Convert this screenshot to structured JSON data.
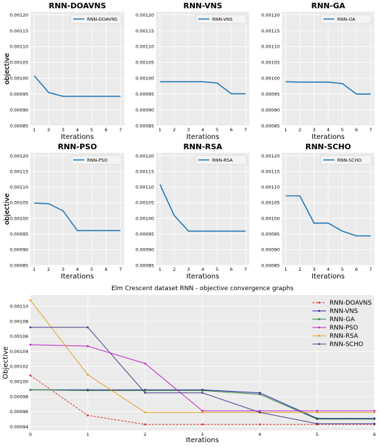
{
  "chart_data": [
    {
      "type": "line",
      "title": "RNN-DOAVNS",
      "xlabel": "Iterations",
      "ylabel": "objective",
      "x": [
        1,
        2,
        3,
        4,
        5,
        6,
        7
      ],
      "ylim": [
        0.00085,
        0.00121
      ],
      "yticks": [
        "0.00085",
        "0.00090",
        "0.00095",
        "0.00100",
        "0.00105",
        "0.00110",
        "0.00115",
        "0.00120"
      ],
      "series": [
        {
          "name": "RNN-DOAVNS",
          "values": [
            0.001008,
            0.000955,
            0.000943,
            0.000943,
            0.000943,
            0.000943,
            0.000943
          ]
        }
      ],
      "legend": "top-right",
      "grid": true
    },
    {
      "type": "line",
      "title": "RNN-VNS",
      "xlabel": "Iterations",
      "ylabel": "objective",
      "x": [
        1,
        2,
        3,
        4,
        5,
        6,
        7
      ],
      "ylim": [
        0.00085,
        0.00121
      ],
      "yticks": [
        "0.00085",
        "0.00090",
        "0.00095",
        "0.00100",
        "0.00105",
        "0.00110",
        "0.00115",
        "0.00120"
      ],
      "series": [
        {
          "name": "RNN-VNS",
          "values": [
            0.000989,
            0.000989,
            0.000989,
            0.000989,
            0.000985,
            0.000951,
            0.000951
          ]
        }
      ],
      "legend": "top-right",
      "grid": true
    },
    {
      "type": "line",
      "title": "RNN-GA",
      "xlabel": "Iterations",
      "ylabel": "objective",
      "x": [
        1,
        2,
        3,
        4,
        5,
        6,
        7
      ],
      "ylim": [
        0.00085,
        0.00121
      ],
      "yticks": [
        "0.00085",
        "0.00090",
        "0.00095",
        "0.00100",
        "0.00105",
        "0.00110",
        "0.00115",
        "0.00120"
      ],
      "series": [
        {
          "name": "RNN-GA",
          "values": [
            0.000989,
            0.000988,
            0.000988,
            0.000988,
            0.000983,
            0.00095,
            0.00095
          ]
        }
      ],
      "legend": "top-right",
      "grid": true
    },
    {
      "type": "line",
      "title": "RNN-PSO",
      "xlabel": "Iterations",
      "ylabel": "objective",
      "x": [
        1,
        2,
        3,
        4,
        5,
        6,
        7
      ],
      "ylim": [
        0.00085,
        0.00121
      ],
      "yticks": [
        "0.00085",
        "0.00090",
        "0.00095",
        "0.00100",
        "0.00105",
        "0.00110",
        "0.00115",
        "0.00120"
      ],
      "series": [
        {
          "name": "RNN-PSO",
          "values": [
            0.001049,
            0.001047,
            0.001024,
            0.000961,
            0.000961,
            0.000961,
            0.000961
          ]
        }
      ],
      "legend": "top-right",
      "grid": true
    },
    {
      "type": "line",
      "title": "RNN-RSA",
      "xlabel": "Iterations",
      "ylabel": "objective",
      "x": [
        1,
        2,
        3,
        4,
        5,
        6,
        7
      ],
      "ylim": [
        0.00085,
        0.00121
      ],
      "yticks": [
        "0.00085",
        "0.00090",
        "0.00095",
        "0.00100",
        "0.00105",
        "0.00110",
        "0.00115",
        "0.00120"
      ],
      "series": [
        {
          "name": "RNN-RSA",
          "values": [
            0.001108,
            0.001009,
            0.000959,
            0.000959,
            0.000959,
            0.000959,
            0.000959
          ]
        }
      ],
      "legend": "top-right",
      "grid": true
    },
    {
      "type": "line",
      "title": "RNN-SCHO",
      "xlabel": "Iterations",
      "ylabel": "objective",
      "x": [
        1,
        2,
        3,
        4,
        5,
        6,
        7
      ],
      "ylim": [
        0.00085,
        0.00121
      ],
      "yticks": [
        "0.00085",
        "0.00090",
        "0.00095",
        "0.00100",
        "0.00105",
        "0.00110",
        "0.00115",
        "0.00120"
      ],
      "series": [
        {
          "name": "RNN-SCHO",
          "values": [
            0.001072,
            0.001072,
            0.000985,
            0.000985,
            0.000959,
            0.000944,
            0.000944
          ]
        }
      ],
      "legend": "top-right",
      "grid": true
    },
    {
      "type": "line",
      "title": "Elm Crescent dataset RNN -  objective convergence graphs",
      "xlabel": "Iterations",
      "ylabel": "Objective",
      "x": [
        0,
        1,
        2,
        3,
        4,
        5,
        6
      ],
      "xticks": [
        "0",
        "1",
        "2",
        "3",
        "4",
        "5",
        "6"
      ],
      "ylim": [
        0.000935,
        0.001115
      ],
      "yticks": [
        "0.00094",
        "0.00096",
        "0.00098",
        "0.00100",
        "0.00102",
        "0.00104",
        "0.00106",
        "0.00108",
        "0.00110"
      ],
      "legend": "top-right",
      "grid": true,
      "series": [
        {
          "name": "RNN-DOAVNS",
          "color": "#d62728",
          "dash": true,
          "values": [
            0.001008,
            0.000955,
            0.000943,
            0.000943,
            0.000943,
            0.000943,
            0.000943
          ]
        },
        {
          "name": "RNN-VNS",
          "color": "#1f1faa",
          "values": [
            0.000989,
            0.000989,
            0.000989,
            0.000989,
            0.000985,
            0.000951,
            0.000951
          ]
        },
        {
          "name": "RNN-GA",
          "color": "#2e7d32",
          "values": [
            0.000989,
            0.000988,
            0.000988,
            0.000988,
            0.000983,
            0.00095,
            0.00095
          ]
        },
        {
          "name": "RNN-PSO",
          "color": "#c020c0",
          "values": [
            0.001049,
            0.001047,
            0.001024,
            0.000961,
            0.000961,
            0.000961,
            0.000961
          ]
        },
        {
          "name": "RNN-RSA",
          "color": "#e0a020",
          "values": [
            0.001108,
            0.001009,
            0.000959,
            0.000959,
            0.000959,
            0.000959,
            0.000959
          ]
        },
        {
          "name": "RNN-SCHO",
          "color": "#4a3a8a",
          "values": [
            0.001072,
            0.001072,
            0.000985,
            0.000985,
            0.000959,
            0.000944,
            0.000944
          ]
        }
      ]
    }
  ]
}
